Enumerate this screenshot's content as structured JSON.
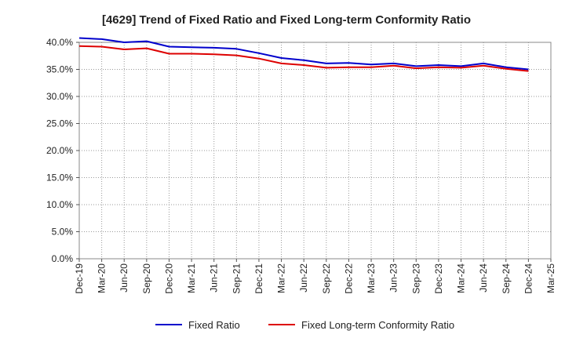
{
  "chart_data": {
    "type": "line",
    "title": "[4629]  Trend of Fixed Ratio and Fixed Long-term Conformity Ratio",
    "xlabel": "",
    "ylabel": "",
    "ylim": [
      0,
      40
    ],
    "y_ticks": [
      "0.0%",
      "5.0%",
      "10.0%",
      "15.0%",
      "20.0%",
      "25.0%",
      "30.0%",
      "35.0%",
      "40.0%"
    ],
    "y_tick_values": [
      0,
      5,
      10,
      15,
      20,
      25,
      30,
      35,
      40
    ],
    "x_ticks": [
      "Dec-19",
      "Mar-20",
      "Jun-20",
      "Sep-20",
      "Dec-20",
      "Mar-21",
      "Jun-21",
      "Sep-21",
      "Dec-21",
      "Mar-22",
      "Jun-22",
      "Sep-22",
      "Dec-22",
      "Mar-23",
      "Jun-23",
      "Sep-23",
      "Dec-23",
      "Mar-24",
      "Jun-24",
      "Sep-24",
      "Dec-24",
      "Mar-25"
    ],
    "grid": true,
    "legend_position": "bottom",
    "x": [
      "Dec-19",
      "Mar-20",
      "Jun-20",
      "Sep-20",
      "Dec-20",
      "Mar-21",
      "Jun-21",
      "Sep-21",
      "Dec-21",
      "Mar-22",
      "Jun-22",
      "Sep-22",
      "Dec-22",
      "Mar-23",
      "Jun-23",
      "Sep-23",
      "Dec-23",
      "Mar-24",
      "Jun-24",
      "Sep-24",
      "Dec-24"
    ],
    "series": [
      {
        "name": "Fixed Ratio",
        "color": "#0000cc",
        "values": [
          40.8,
          40.6,
          40.0,
          40.2,
          39.2,
          39.1,
          39.0,
          38.8,
          38.0,
          37.1,
          36.7,
          36.1,
          36.2,
          35.9,
          36.1,
          35.6,
          35.8,
          35.6,
          36.1,
          35.4,
          35.0
        ]
      },
      {
        "name": "Fixed Long-term Conformity Ratio",
        "color": "#dd0000",
        "values": [
          39.3,
          39.2,
          38.7,
          38.9,
          37.9,
          37.9,
          37.8,
          37.6,
          37.0,
          36.1,
          35.8,
          35.3,
          35.4,
          35.4,
          35.7,
          35.2,
          35.4,
          35.3,
          35.7,
          35.1,
          34.7
        ]
      }
    ]
  }
}
